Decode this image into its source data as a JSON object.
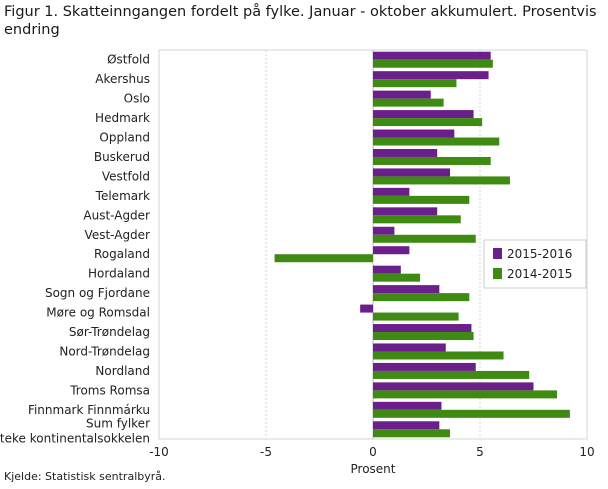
{
  "title": "Figur 1. Skatteinngangen fordelt på fylke. Januar - oktober akkumulert. Prosentvis endring",
  "source": "Kjelde: Statistisk sentralbyrå.",
  "chart_data": {
    "type": "bar",
    "orientation": "horizontal",
    "categories": [
      "Østfold",
      "Akershus",
      "Oslo",
      "Hedmark",
      "Oppland",
      "Buskerud",
      "Vestfold",
      "Telemark",
      "Aust-Agder",
      "Vest-Agder",
      "Rogaland",
      "Hordaland",
      "Sogn og Fjordane",
      "Møre og Romsdal",
      "Sør-Trøndelag",
      "Nord-Trøndelag",
      "Nordland",
      "Troms Romsa",
      "Finnmark Finnmárku",
      "Sum fylker unnateke kontinentalsokkelen"
    ],
    "series": [
      {
        "name": "2015-2016",
        "color": "#6b1f8a",
        "values": [
          5.5,
          5.4,
          2.7,
          4.7,
          3.8,
          3.0,
          3.6,
          1.7,
          3.0,
          1.0,
          1.7,
          1.3,
          3.1,
          -0.6,
          4.6,
          3.4,
          4.8,
          7.5,
          3.2,
          3.1
        ]
      },
      {
        "name": "2014-2015",
        "color": "#3f8a12",
        "values": [
          5.6,
          3.9,
          3.3,
          5.1,
          5.9,
          5.5,
          6.4,
          4.5,
          4.1,
          4.8,
          -4.6,
          2.2,
          4.5,
          4.0,
          4.7,
          6.1,
          7.3,
          8.6,
          9.2,
          3.6
        ]
      }
    ],
    "xlabel": "Prosent",
    "xlim": [
      -10,
      10
    ],
    "xticks": [
      -10,
      -5,
      0,
      5,
      10
    ],
    "grid": true,
    "legend_position": "right"
  }
}
